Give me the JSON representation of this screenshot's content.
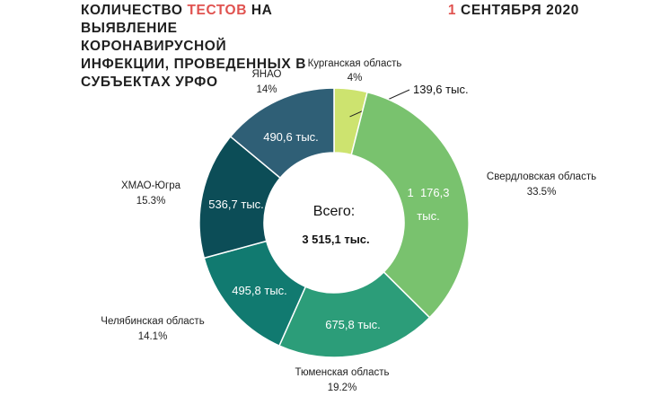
{
  "header": {
    "title_part1": "КОЛИЧЕСТВО ",
    "title_highlight": "ТЕСТОВ",
    "title_part2": " НА ВЫЯВЛЕНИЕ КОРОНАВИРУСНОЙ ИНФЕКЦИИ, ПРОВЕДЕННЫХ В СУБЪЕКТАХ УРФО",
    "date_number": "1",
    "date_rest": " СЕНТЯБРЯ 2020",
    "accent_color": "#e0524f"
  },
  "chart_data": {
    "type": "pie",
    "donut": true,
    "center_label": "Всего:",
    "center_value": "3 515,1 тыс.",
    "slices": [
      {
        "name": "Курганская область",
        "percent_label": "4%",
        "value": 139.6,
        "value_label": "139,6 тыс.",
        "color": "#cde36f"
      },
      {
        "name": "Свердловская область",
        "percent_label": "33.5%",
        "value": 1176.3,
        "value_label": "1 176,3 тыс.",
        "color": "#79c26e"
      },
      {
        "name": "Тюменская область",
        "percent_label": "19.2%",
        "value": 675.8,
        "value_label": "675,8 тыс.",
        "color": "#2c9d79"
      },
      {
        "name": "Челябинская область",
        "percent_label": "14.1%",
        "value": 495.8,
        "value_label": "495,8 тыс.",
        "color": "#117a70"
      },
      {
        "name": "ХМАО-Югра",
        "percent_label": "15.3%",
        "value": 536.7,
        "value_label": "536,7 тыс.",
        "color": "#0c4d57"
      },
      {
        "name": "ЯНАО",
        "percent_label": "14%",
        "value": 490.6,
        "value_label": "490,6 тыс.",
        "color": "#2f5f76"
      }
    ]
  }
}
